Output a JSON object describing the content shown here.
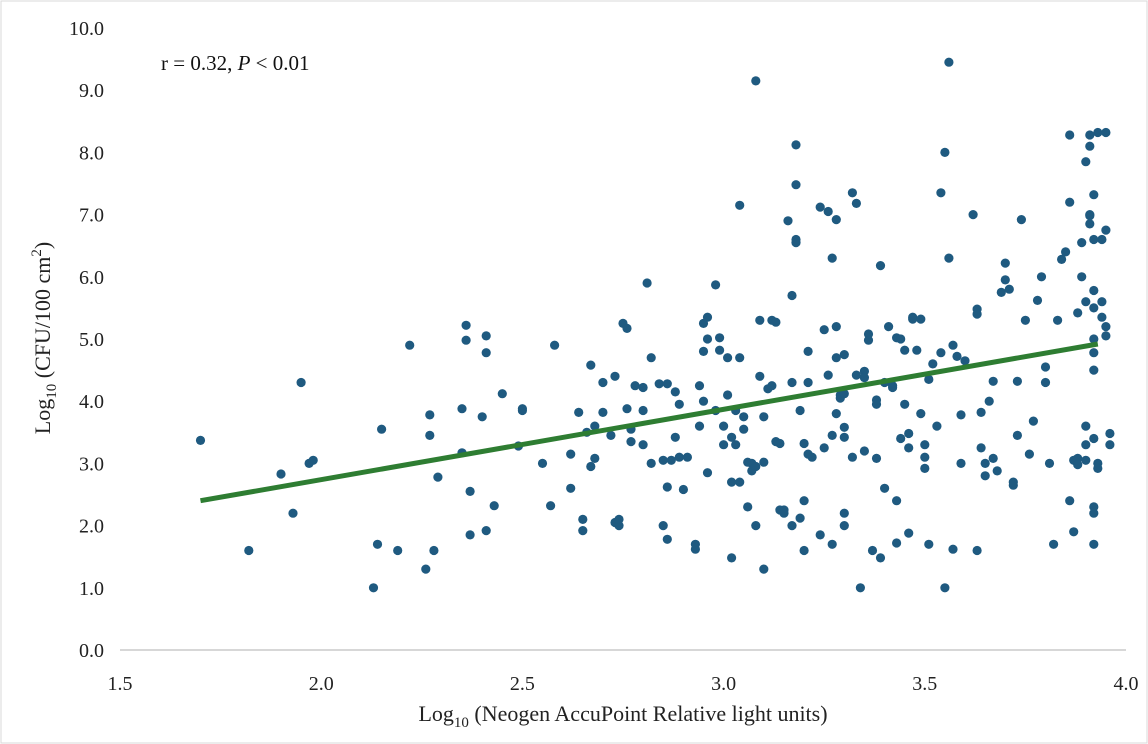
{
  "chart_data": {
    "type": "scatter",
    "title": "",
    "xlabel_parts": {
      "base": "Log",
      "sub": "10",
      "rest": " (Neogen AccuPoint Relative light units)"
    },
    "ylabel_parts": {
      "base": "Log",
      "sub": "10",
      "rest": " (CFU/100 cm",
      "sup": "2",
      "end": ")"
    },
    "annotation": {
      "prefix": "r = 0.32, ",
      "italic": "P",
      "suffix": " < 0.01"
    },
    "xlim": [
      1.5,
      4.0
    ],
    "ylim": [
      0.0,
      10.0
    ],
    "x_ticks": [
      "1.5",
      "2.0",
      "2.5",
      "3.0",
      "3.5",
      "4.0"
    ],
    "y_ticks": [
      "0.0",
      "1.0",
      "2.0",
      "3.0",
      "4.0",
      "5.0",
      "6.0",
      "7.0",
      "8.0",
      "9.0",
      "10.0"
    ],
    "grid": false,
    "legend": "none",
    "colors": {
      "points": "#1f5a80",
      "trendline": "#2e7d32"
    },
    "trendline": {
      "x": [
        1.7,
        3.93
      ],
      "y": [
        2.4,
        4.92
      ]
    },
    "points": [
      [
        1.7,
        3.37
      ],
      [
        1.82,
        1.6
      ],
      [
        1.9,
        2.83
      ],
      [
        1.93,
        2.2
      ],
      [
        1.95,
        4.3
      ],
      [
        1.97,
        3.0
      ],
      [
        1.98,
        3.05
      ],
      [
        2.13,
        1.0
      ],
      [
        2.14,
        1.7
      ],
      [
        2.15,
        3.55
      ],
      [
        2.19,
        1.6
      ],
      [
        2.22,
        4.9
      ],
      [
        2.26,
        1.3
      ],
      [
        2.27,
        3.78
      ],
      [
        2.27,
        3.45
      ],
      [
        2.28,
        1.6
      ],
      [
        2.29,
        2.78
      ],
      [
        2.35,
        3.88
      ],
      [
        2.35,
        3.17
      ],
      [
        2.36,
        5.22
      ],
      [
        2.36,
        4.98
      ],
      [
        2.37,
        2.55
      ],
      [
        2.37,
        1.85
      ],
      [
        2.4,
        3.75
      ],
      [
        2.41,
        1.92
      ],
      [
        2.41,
        5.05
      ],
      [
        2.41,
        4.78
      ],
      [
        2.43,
        2.32
      ],
      [
        2.45,
        4.12
      ],
      [
        2.49,
        3.28
      ],
      [
        2.5,
        3.88
      ],
      [
        2.5,
        3.85
      ],
      [
        2.55,
        3.0
      ],
      [
        2.57,
        2.32
      ],
      [
        2.58,
        4.9
      ],
      [
        2.62,
        2.6
      ],
      [
        2.62,
        3.15
      ],
      [
        2.64,
        3.82
      ],
      [
        2.65,
        1.92
      ],
      [
        2.65,
        2.1
      ],
      [
        2.66,
        3.5
      ],
      [
        2.67,
        4.58
      ],
      [
        2.67,
        2.95
      ],
      [
        2.68,
        3.08
      ],
      [
        2.68,
        3.6
      ],
      [
        2.7,
        4.3
      ],
      [
        2.7,
        3.82
      ],
      [
        2.72,
        3.45
      ],
      [
        2.73,
        2.05
      ],
      [
        2.73,
        4.4
      ],
      [
        2.74,
        2.0
      ],
      [
        2.74,
        2.1
      ],
      [
        2.75,
        5.25
      ],
      [
        2.76,
        5.17
      ],
      [
        2.76,
        3.88
      ],
      [
        2.77,
        3.35
      ],
      [
        2.77,
        3.55
      ],
      [
        2.78,
        4.25
      ],
      [
        2.8,
        3.85
      ],
      [
        2.8,
        4.22
      ],
      [
        2.8,
        3.3
      ],
      [
        2.81,
        5.9
      ],
      [
        2.82,
        4.7
      ],
      [
        2.82,
        3.0
      ],
      [
        2.84,
        4.28
      ],
      [
        2.85,
        2.0
      ],
      [
        2.85,
        3.05
      ],
      [
        2.86,
        4.28
      ],
      [
        2.86,
        2.62
      ],
      [
        2.86,
        1.78
      ],
      [
        2.87,
        3.05
      ],
      [
        2.88,
        3.42
      ],
      [
        2.88,
        4.15
      ],
      [
        2.89,
        3.1
      ],
      [
        2.89,
        3.95
      ],
      [
        2.9,
        2.58
      ],
      [
        2.91,
        3.1
      ],
      [
        2.93,
        1.62
      ],
      [
        2.93,
        1.7
      ],
      [
        2.94,
        3.6
      ],
      [
        2.94,
        4.25
      ],
      [
        2.95,
        4.0
      ],
      [
        2.95,
        4.8
      ],
      [
        2.95,
        5.25
      ],
      [
        2.96,
        5.35
      ],
      [
        2.96,
        5.0
      ],
      [
        2.96,
        2.85
      ],
      [
        2.98,
        3.85
      ],
      [
        2.98,
        5.87
      ],
      [
        2.99,
        5.02
      ],
      [
        2.99,
        4.82
      ],
      [
        3.0,
        3.3
      ],
      [
        3.0,
        3.6
      ],
      [
        3.01,
        4.1
      ],
      [
        3.01,
        4.7
      ],
      [
        3.02,
        3.42
      ],
      [
        3.02,
        2.7
      ],
      [
        3.02,
        1.48
      ],
      [
        3.03,
        3.85
      ],
      [
        3.03,
        3.3
      ],
      [
        3.04,
        4.7
      ],
      [
        3.04,
        7.15
      ],
      [
        3.04,
        2.7
      ],
      [
        3.05,
        3.55
      ],
      [
        3.05,
        3.75
      ],
      [
        3.06,
        3.02
      ],
      [
        3.06,
        2.3
      ],
      [
        3.07,
        3.0
      ],
      [
        3.07,
        2.88
      ],
      [
        3.08,
        2.0
      ],
      [
        3.08,
        9.15
      ],
      [
        3.08,
        2.95
      ],
      [
        3.09,
        5.3
      ],
      [
        3.09,
        4.4
      ],
      [
        3.1,
        3.02
      ],
      [
        3.1,
        1.3
      ],
      [
        3.1,
        3.75
      ],
      [
        3.11,
        4.2
      ],
      [
        3.12,
        4.25
      ],
      [
        3.12,
        5.3
      ],
      [
        3.13,
        5.27
      ],
      [
        3.13,
        3.35
      ],
      [
        3.14,
        2.25
      ],
      [
        3.14,
        3.32
      ],
      [
        3.15,
        2.2
      ],
      [
        3.15,
        2.25
      ],
      [
        3.16,
        6.9
      ],
      [
        3.17,
        4.3
      ],
      [
        3.17,
        2.0
      ],
      [
        3.17,
        5.7
      ],
      [
        3.18,
        7.48
      ],
      [
        3.18,
        8.12
      ],
      [
        3.18,
        6.6
      ],
      [
        3.18,
        6.55
      ],
      [
        3.19,
        2.12
      ],
      [
        3.19,
        3.85
      ],
      [
        3.2,
        3.32
      ],
      [
        3.2,
        1.6
      ],
      [
        3.2,
        2.4
      ],
      [
        3.21,
        4.8
      ],
      [
        3.21,
        4.3
      ],
      [
        3.21,
        3.15
      ],
      [
        3.22,
        3.1
      ],
      [
        3.24,
        7.12
      ],
      [
        3.24,
        1.85
      ],
      [
        3.25,
        5.15
      ],
      [
        3.25,
        3.25
      ],
      [
        3.26,
        7.05
      ],
      [
        3.26,
        4.42
      ],
      [
        3.27,
        6.3
      ],
      [
        3.27,
        3.45
      ],
      [
        3.27,
        1.7
      ],
      [
        3.28,
        6.92
      ],
      [
        3.28,
        5.2
      ],
      [
        3.28,
        3.8
      ],
      [
        3.28,
        4.7
      ],
      [
        3.29,
        4.1
      ],
      [
        3.29,
        4.05
      ],
      [
        3.3,
        2.2
      ],
      [
        3.3,
        3.42
      ],
      [
        3.3,
        3.58
      ],
      [
        3.3,
        4.75
      ],
      [
        3.3,
        2.0
      ],
      [
        3.3,
        4.12
      ],
      [
        3.32,
        3.1
      ],
      [
        3.32,
        7.35
      ],
      [
        3.33,
        4.42
      ],
      [
        3.33,
        7.18
      ],
      [
        3.34,
        1.0
      ],
      [
        3.35,
        3.2
      ],
      [
        3.35,
        4.48
      ],
      [
        3.35,
        4.38
      ],
      [
        3.36,
        4.98
      ],
      [
        3.36,
        5.08
      ],
      [
        3.37,
        1.6
      ],
      [
        3.38,
        3.95
      ],
      [
        3.38,
        3.08
      ],
      [
        3.38,
        4.02
      ],
      [
        3.39,
        6.18
      ],
      [
        3.39,
        1.48
      ],
      [
        3.4,
        4.3
      ],
      [
        3.4,
        2.6
      ],
      [
        3.41,
        5.2
      ],
      [
        3.42,
        4.25
      ],
      [
        3.42,
        4.22
      ],
      [
        3.43,
        5.02
      ],
      [
        3.43,
        1.72
      ],
      [
        3.43,
        2.4
      ],
      [
        3.44,
        5.0
      ],
      [
        3.44,
        3.4
      ],
      [
        3.45,
        4.82
      ],
      [
        3.45,
        3.95
      ],
      [
        3.46,
        3.48
      ],
      [
        3.46,
        1.88
      ],
      [
        3.46,
        3.25
      ],
      [
        3.47,
        5.35
      ],
      [
        3.47,
        5.32
      ],
      [
        3.48,
        4.82
      ],
      [
        3.49,
        5.32
      ],
      [
        3.49,
        3.8
      ],
      [
        3.5,
        2.92
      ],
      [
        3.5,
        3.3
      ],
      [
        3.5,
        3.1
      ],
      [
        3.51,
        4.35
      ],
      [
        3.51,
        1.7
      ],
      [
        3.52,
        4.6
      ],
      [
        3.53,
        3.6
      ],
      [
        3.54,
        4.78
      ],
      [
        3.54,
        7.35
      ],
      [
        3.55,
        8.0
      ],
      [
        3.55,
        1.0
      ],
      [
        3.56,
        9.45
      ],
      [
        3.56,
        6.3
      ],
      [
        3.57,
        4.9
      ],
      [
        3.57,
        1.62
      ],
      [
        3.58,
        4.72
      ],
      [
        3.59,
        3.78
      ],
      [
        3.59,
        3.0
      ],
      [
        3.6,
        4.65
      ],
      [
        3.62,
        7.0
      ],
      [
        3.63,
        5.48
      ],
      [
        3.63,
        5.4
      ],
      [
        3.63,
        1.6
      ],
      [
        3.64,
        3.82
      ],
      [
        3.64,
        3.25
      ],
      [
        3.65,
        3.0
      ],
      [
        3.65,
        2.8
      ],
      [
        3.66,
        4.0
      ],
      [
        3.67,
        4.32
      ],
      [
        3.67,
        3.08
      ],
      [
        3.68,
        2.88
      ],
      [
        3.69,
        5.75
      ],
      [
        3.7,
        6.22
      ],
      [
        3.7,
        5.95
      ],
      [
        3.71,
        5.8
      ],
      [
        3.72,
        2.65
      ],
      [
        3.72,
        2.7
      ],
      [
        3.73,
        4.32
      ],
      [
        3.73,
        3.45
      ],
      [
        3.74,
        6.92
      ],
      [
        3.75,
        5.3
      ],
      [
        3.76,
        3.15
      ],
      [
        3.77,
        3.68
      ],
      [
        3.78,
        5.62
      ],
      [
        3.79,
        6.0
      ],
      [
        3.8,
        4.3
      ],
      [
        3.8,
        4.55
      ],
      [
        3.81,
        3.0
      ],
      [
        3.82,
        1.7
      ],
      [
        3.83,
        5.3
      ],
      [
        3.84,
        6.28
      ],
      [
        3.85,
        6.4
      ],
      [
        3.86,
        8.28
      ],
      [
        3.86,
        7.2
      ],
      [
        3.86,
        2.4
      ],
      [
        3.87,
        1.9
      ],
      [
        3.87,
        3.05
      ],
      [
        3.88,
        5.42
      ],
      [
        3.88,
        3.08
      ],
      [
        3.88,
        2.98
      ],
      [
        3.89,
        6.55
      ],
      [
        3.89,
        6.0
      ],
      [
        3.9,
        7.85
      ],
      [
        3.9,
        5.6
      ],
      [
        3.9,
        3.6
      ],
      [
        3.9,
        3.05
      ],
      [
        3.9,
        3.3
      ],
      [
        3.91,
        8.1
      ],
      [
        3.91,
        8.28
      ],
      [
        3.91,
        6.85
      ],
      [
        3.91,
        6.98
      ],
      [
        3.91,
        7.0
      ],
      [
        3.92,
        7.32
      ],
      [
        3.92,
        6.6
      ],
      [
        3.92,
        5.78
      ],
      [
        3.92,
        5.5
      ],
      [
        3.92,
        5.0
      ],
      [
        3.92,
        4.78
      ],
      [
        3.92,
        4.5
      ],
      [
        3.92,
        3.4
      ],
      [
        3.92,
        2.3
      ],
      [
        3.92,
        2.2
      ],
      [
        3.92,
        1.7
      ],
      [
        3.93,
        8.32
      ],
      [
        3.93,
        3.0
      ],
      [
        3.93,
        2.92
      ],
      [
        3.94,
        6.6
      ],
      [
        3.94,
        5.6
      ],
      [
        3.94,
        5.35
      ],
      [
        3.95,
        5.2
      ],
      [
        3.95,
        5.05
      ],
      [
        3.95,
        6.75
      ],
      [
        3.95,
        8.32
      ],
      [
        3.96,
        3.48
      ],
      [
        3.96,
        3.3
      ]
    ]
  }
}
